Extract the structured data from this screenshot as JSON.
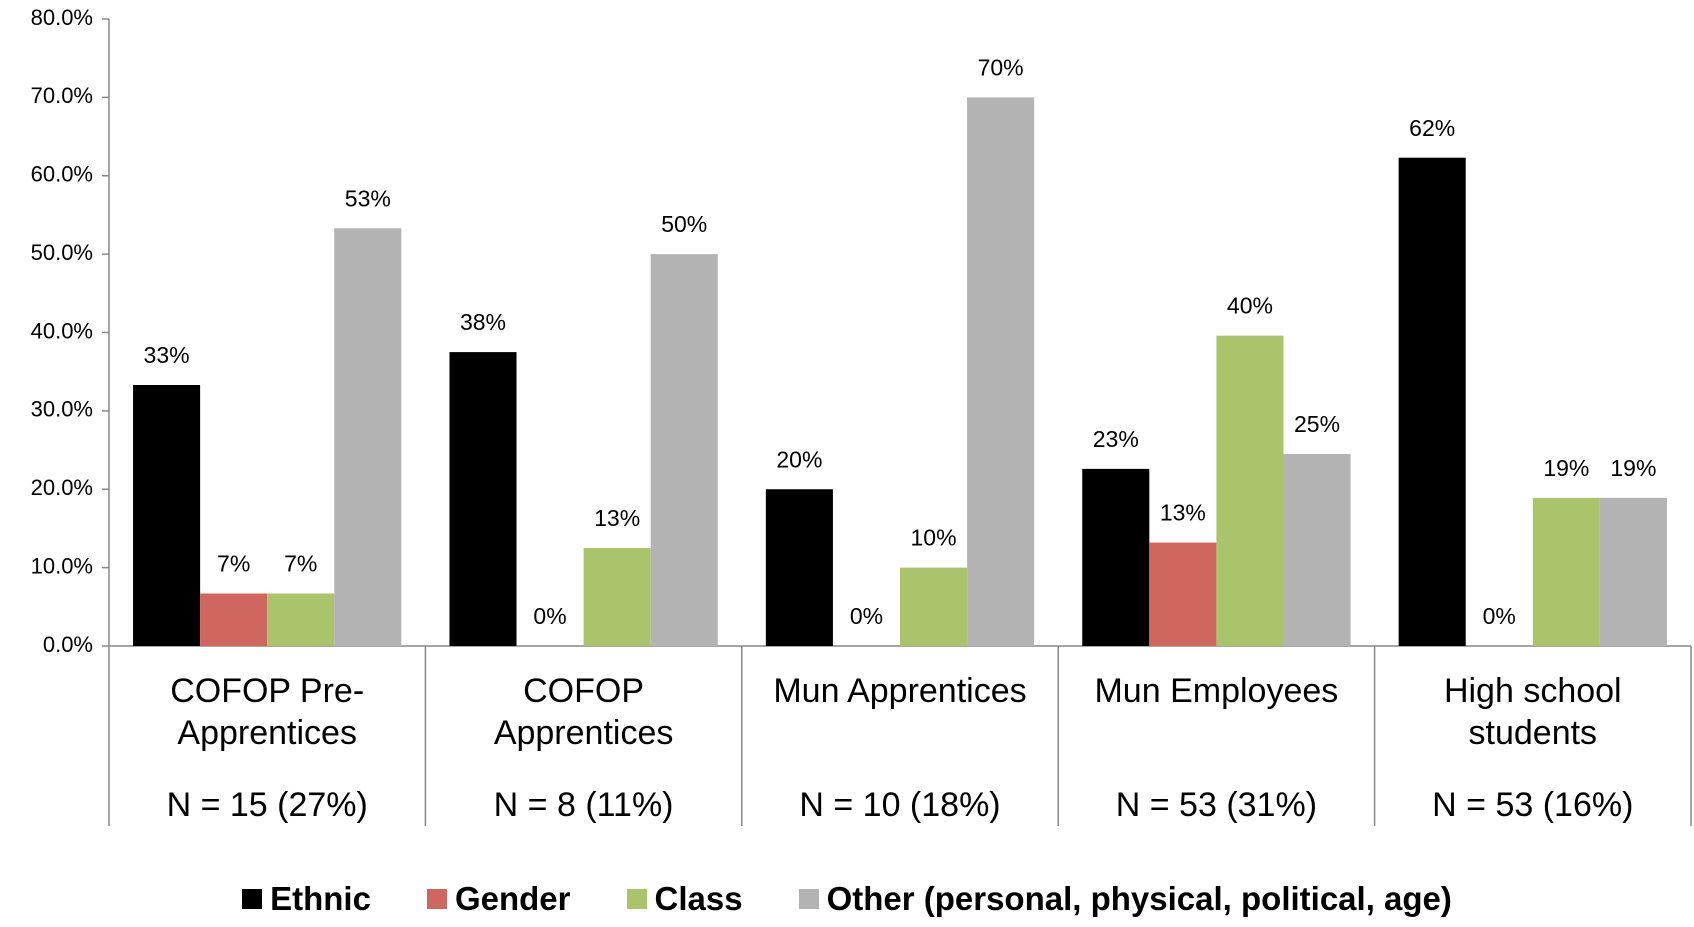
{
  "chart_data": {
    "type": "bar",
    "categories": [
      "COFOP Pre-Apprentices",
      "COFOP Apprentices",
      "Mun Apprentices",
      "Mun Employees",
      "High school students"
    ],
    "category_notes": [
      "N = 15 (27%)",
      "N = 8 (11%)",
      "N = 10 (18%)",
      "N = 53 (31%)",
      "N = 53 (16%)"
    ],
    "series": [
      {
        "name": "Ethnic",
        "color": "#000000",
        "values": [
          33.3,
          37.5,
          20.0,
          22.6,
          62.3
        ],
        "value_labels": [
          "33%",
          "38%",
          "20%",
          "23%",
          "62%"
        ]
      },
      {
        "name": "Gender",
        "color": "#d0675f",
        "values": [
          6.7,
          0,
          0,
          13.2,
          0
        ],
        "value_labels": [
          "7%",
          "0%",
          "0%",
          "13%",
          "0%"
        ]
      },
      {
        "name": "Class",
        "color": "#a9c46b",
        "values": [
          6.7,
          12.5,
          10.0,
          39.6,
          18.9
        ],
        "value_labels": [
          "7%",
          "13%",
          "10%",
          "40%",
          "19%"
        ]
      },
      {
        "name": "Other (personal, physical, political, age)",
        "color": "#b3b3b3",
        "values": [
          53.3,
          50.0,
          70.0,
          24.5,
          18.9
        ],
        "value_labels": [
          "53%",
          "50%",
          "70%",
          "25%",
          "19%"
        ]
      }
    ],
    "ylim": [
      0,
      80
    ],
    "yticks": [
      {
        "value": 0,
        "label": "0.0%"
      },
      {
        "value": 10,
        "label": "10.0%"
      },
      {
        "value": 20,
        "label": "20.0%"
      },
      {
        "value": 30,
        "label": "30.0%"
      },
      {
        "value": 40,
        "label": "40.0%"
      },
      {
        "value": 50,
        "label": "50.0%"
      },
      {
        "value": 60,
        "label": "60.0%"
      },
      {
        "value": 70,
        "label": "70.0%"
      },
      {
        "value": 80,
        "label": "80.0%"
      }
    ],
    "legend": "bottom"
  }
}
